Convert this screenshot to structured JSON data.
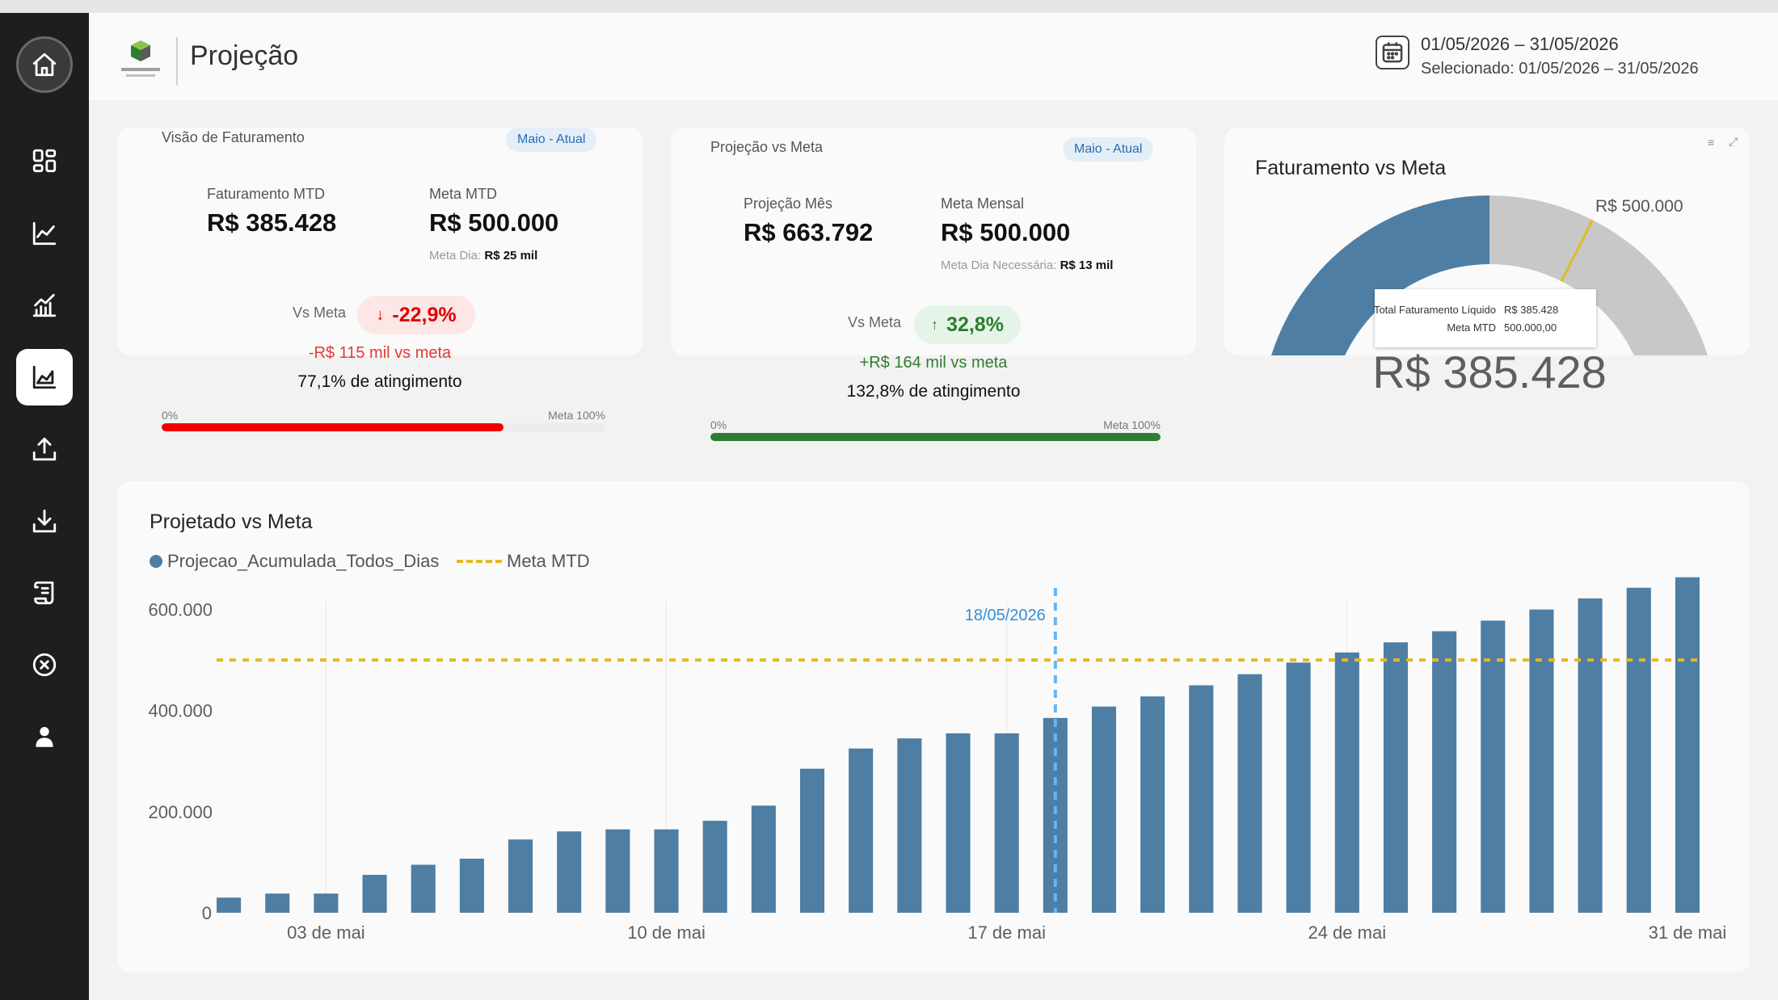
{
  "nav": [
    {
      "name": "home-icon",
      "label": "Início"
    },
    {
      "name": "dashboard-grid-icon"
    },
    {
      "name": "line-chart-icon"
    },
    {
      "name": "bar-trend-icon"
    },
    {
      "name": "area-chart-icon",
      "active": true
    },
    {
      "name": "upload-icon"
    },
    {
      "name": "download-icon"
    },
    {
      "name": "scroll-icon"
    },
    {
      "name": "close-circle-icon"
    },
    {
      "name": "user-icon"
    }
  ],
  "header": {
    "title": "Projeção",
    "date_range": "01/05/2026 – 31/05/2026",
    "selected": "Selecionado: 01/05/2026 – 31/05/2026"
  },
  "card1": {
    "title": "Visão de Faturamento",
    "pill": "Maio - Atual",
    "kpi1_label": "Faturamento MTD",
    "kpi1_value": "R$ 385.428",
    "kpi2_label": "Meta MTD",
    "kpi2_value": "R$ 500.000",
    "sub_label": "Meta Dia:",
    "sub_value": "R$ 25 mil",
    "vs_label": "Vs Meta",
    "vs_value": "-22,9%",
    "diff": "-R$ 115 mil vs meta",
    "attainment": "77,1% de atingimento",
    "bar_start": "0%",
    "bar_end": "Meta 100%",
    "progress": 0.771
  },
  "card2": {
    "title": "Projeção vs Meta",
    "pill": "Maio - Atual",
    "kpi1_label": "Projeção Mês",
    "kpi1_value": "R$ 663.792",
    "kpi2_label": "Meta Mensal",
    "kpi2_value": "R$ 500.000",
    "sub_label": "Meta Dia Necessária:",
    "sub_value": "R$ 13 mil",
    "vs_label": "Vs Meta",
    "vs_value": "32,8%",
    "diff": "+R$ 164 mil vs meta",
    "attainment": "132,8% de atingimento",
    "bar_start": "0%",
    "bar_end": "Meta 100%",
    "progress": 1.0
  },
  "gauge": {
    "title": "Faturamento vs Meta",
    "value_label": "R$ 385.428",
    "goal_label": "R$ 500.000",
    "value": 385428,
    "target": 500000,
    "max": 770856,
    "tooltip": [
      {
        "label": "Total Faturamento Líquido",
        "value": "R$ 385.428"
      },
      {
        "label": "Meta MTD",
        "value": "500.000,00"
      }
    ],
    "colors": {
      "fill": "#4e7ea3",
      "rest": "#c8c8c8",
      "target": "#e2b924"
    }
  },
  "chart_data": {
    "type": "bar",
    "title": "Projetado vs Meta",
    "series": [
      {
        "name": "Projecao_Acumulada_Todos_Dias",
        "type": "bar",
        "color": "#4e7ea3",
        "values": [
          30000,
          38000,
          38000,
          75000,
          95000,
          107000,
          145000,
          161000,
          165000,
          165000,
          182000,
          212000,
          285000,
          325000,
          345000,
          355000,
          355000,
          385428,
          408000,
          428000,
          450000,
          472000,
          495000,
          515000,
          535000,
          557000,
          578000,
          600000,
          622000,
          643000,
          663792
        ]
      },
      {
        "name": "Meta MTD",
        "type": "line",
        "style": "dashed",
        "color": "#e2b924",
        "value": 500000
      }
    ],
    "x": [
      "01 de mai",
      "02 de mai",
      "03 de mai",
      "04 de mai",
      "05 de mai",
      "06 de mai",
      "07 de mai",
      "08 de mai",
      "09 de mai",
      "10 de mai",
      "11 de mai",
      "12 de mai",
      "13 de mai",
      "14 de mai",
      "15 de mai",
      "16 de mai",
      "17 de mai",
      "18 de mai",
      "19 de mai",
      "20 de mai",
      "21 de mai",
      "22 de mai",
      "23 de mai",
      "24 de mai",
      "25 de mai",
      "26 de mai",
      "27 de mai",
      "28 de mai",
      "29 de mai",
      "30 de mai",
      "31 de mai"
    ],
    "x_ticks": [
      {
        "index": 2,
        "label": "03 de mai"
      },
      {
        "index": 9,
        "label": "10 de mai"
      },
      {
        "index": 16,
        "label": "17 de mai"
      },
      {
        "index": 23,
        "label": "24 de mai"
      },
      {
        "index": 30,
        "label": "31 de mai"
      }
    ],
    "y_ticks": [
      "0",
      "200.000",
      "400.000",
      "600.000"
    ],
    "ylim": [
      0,
      700000
    ],
    "marker": {
      "index": 17,
      "label": "18/05/2026",
      "color": "#64b5f6"
    }
  }
}
